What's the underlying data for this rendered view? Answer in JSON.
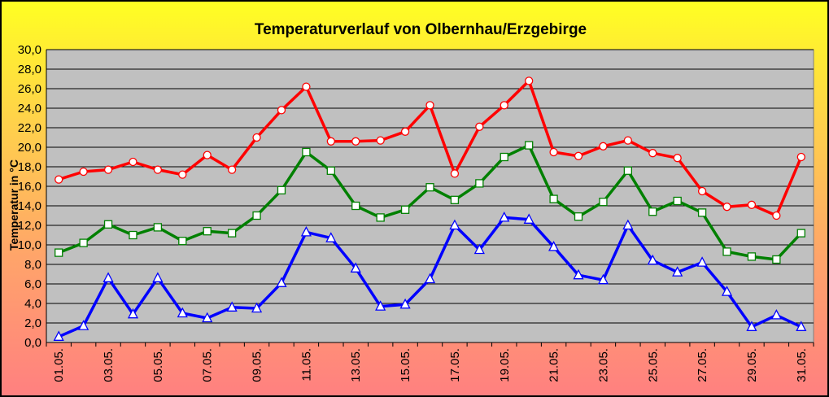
{
  "chart_data": {
    "type": "line",
    "title": "Temperaturverlauf von Olbernhau/Erzgebirge",
    "ylabel": "Temperatur in °C",
    "xlabel": "",
    "ylim": [
      0,
      30
    ],
    "y_ticks": [
      "0,0",
      "2,0",
      "4,0",
      "6,0",
      "8,0",
      "10,0",
      "12,0",
      "14,0",
      "16,0",
      "18,0",
      "20,0",
      "22,0",
      "24,0",
      "26,0",
      "28,0",
      "30,0"
    ],
    "categories": [
      "01.05.",
      "02.05.",
      "03.05.",
      "04.05.",
      "05.05.",
      "06.05.",
      "07.05.",
      "08.05.",
      "09.05.",
      "10.05.",
      "11.05.",
      "12.05.",
      "13.05.",
      "14.05.",
      "15.05.",
      "16.05.",
      "17.05.",
      "18.05.",
      "19.05.",
      "20.05.",
      "21.05.",
      "22.05.",
      "23.05.",
      "24.05.",
      "25.05.",
      "26.05.",
      "27.05.",
      "28.05.",
      "29.05.",
      "30.05.",
      "31.05."
    ],
    "x_tick_labels": [
      "01.05.",
      "03.05.",
      "05.05.",
      "07.05.",
      "09.05.",
      "11.05.",
      "13.05.",
      "15.05.",
      "17.05.",
      "19.05.",
      "21.05.",
      "23.05.",
      "25.05.",
      "27.05.",
      "29.05.",
      "31.05."
    ],
    "grid": true,
    "plot_background": "#c0c0c0",
    "series": [
      {
        "color": "#ff0000",
        "marker": "circle",
        "values": [
          16.7,
          17.5,
          17.7,
          18.5,
          17.7,
          17.2,
          19.2,
          17.7,
          21.0,
          23.8,
          26.2,
          20.6,
          20.6,
          20.7,
          21.6,
          24.3,
          17.3,
          22.1,
          24.3,
          26.8,
          19.5,
          19.1,
          20.1,
          20.7,
          19.4,
          18.9,
          15.5,
          13.9,
          14.1,
          13.0,
          19.0
        ]
      },
      {
        "color": "#008000",
        "marker": "square",
        "values": [
          9.2,
          10.2,
          12.1,
          11.0,
          11.8,
          10.4,
          11.4,
          11.2,
          13.0,
          15.6,
          19.5,
          17.6,
          14.0,
          12.8,
          13.6,
          15.9,
          14.6,
          16.3,
          19.0,
          20.2,
          14.7,
          12.9,
          14.4,
          17.6,
          13.4,
          14.5,
          13.3,
          9.3,
          8.8,
          8.5,
          11.2
        ]
      },
      {
        "color": "#0000ff",
        "marker": "triangle",
        "values": [
          0.6,
          1.7,
          6.6,
          2.9,
          6.6,
          3.0,
          2.5,
          3.6,
          3.5,
          6.1,
          11.3,
          10.7,
          7.6,
          3.7,
          3.9,
          6.5,
          12.0,
          9.5,
          12.8,
          12.6,
          9.8,
          6.9,
          6.4,
          12.0,
          8.4,
          7.2,
          8.2,
          5.2,
          1.6,
          2.8,
          1.6
        ]
      }
    ]
  }
}
